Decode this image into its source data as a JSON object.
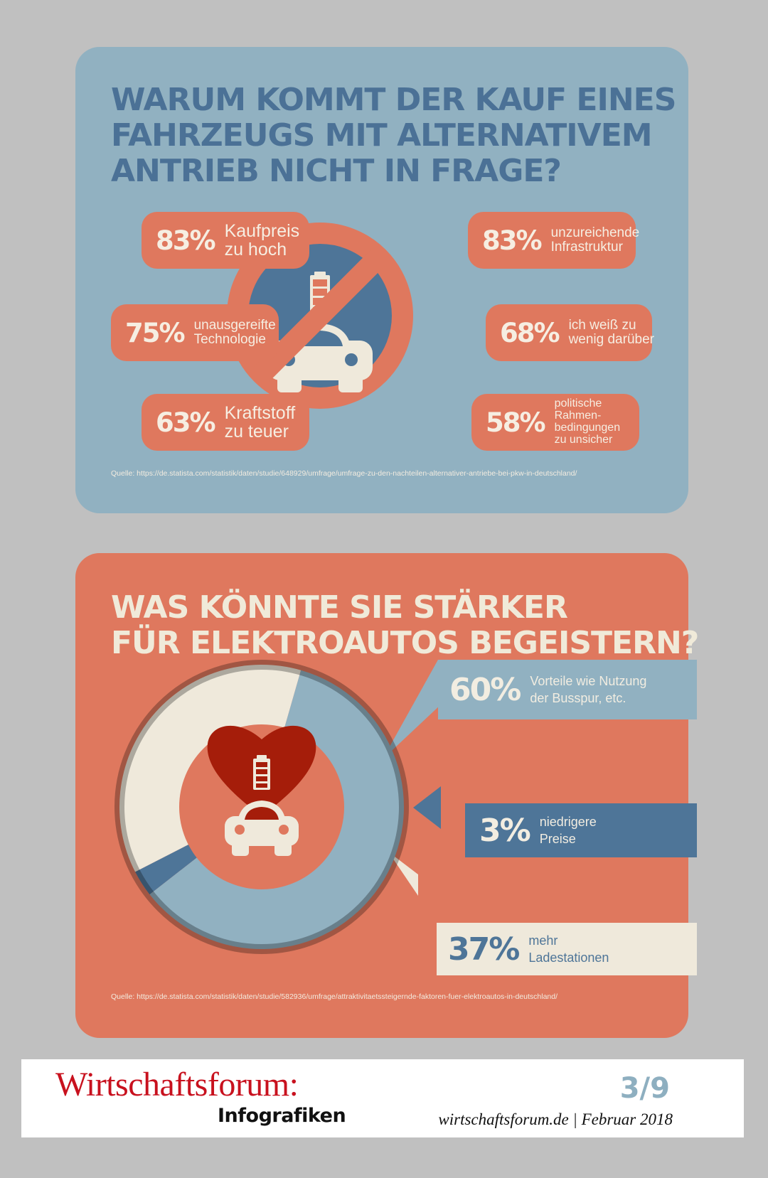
{
  "top": {
    "title_lines": [
      "Warum kommt der Kauf eines",
      "Fahrzeugs mit alternativem",
      "Antrieb nicht in Frage?"
    ],
    "items": [
      {
        "pct": "83%",
        "lines": [
          "Kaufpreis",
          "zu hoch"
        ]
      },
      {
        "pct": "83%",
        "lines": [
          "unzureichende",
          "Infrastruktur"
        ]
      },
      {
        "pct": "75%",
        "lines": [
          "unausgereifte",
          "Technologie"
        ]
      },
      {
        "pct": "68%",
        "lines": [
          "ich weiß zu",
          "wenig darüber"
        ]
      },
      {
        "pct": "63%",
        "lines": [
          "Kraftstoff",
          "zu teuer"
        ]
      },
      {
        "pct": "58%",
        "lines": [
          "politische",
          "Rahmen-",
          "bedingungen",
          "zu unsicher"
        ]
      }
    ],
    "source": "Quelle: https://de.statista.com/statistik/daten/studie/648929/umfrage/umfrage-zu-den-nachteilen-alternativer-antriebe-bei-pkw-in-deutschland/",
    "icon": "no-electric-car-icon"
  },
  "bottom": {
    "title_lines": [
      "Was könnte Sie stärker",
      "für Elektroautos begeistern?"
    ],
    "items": [
      {
        "pct": "60%",
        "lines": [
          "Vorteile wie Nutzung",
          "der Busspur, etc."
        ]
      },
      {
        "pct": "3%",
        "lines": [
          "niedrigere",
          "Preise"
        ]
      },
      {
        "pct": "37%",
        "lines": [
          "mehr",
          "Ladestationen"
        ]
      }
    ],
    "source": "Quelle: https://de.statista.com/statistik/daten/studie/582936/umfrage/attraktivitaetssteigernde-faktoren-fuer-elektroautos-in-deutschland/",
    "icon": "heart-electric-car-icon"
  },
  "chart_data": [
    {
      "type": "bar",
      "title": "Warum kommt der Kauf eines Fahrzeugs mit alternativem Antrieb nicht in Frage?",
      "categories": [
        "Kaufpreis zu hoch",
        "unzureichende Infrastruktur",
        "unausgereifte Technologie",
        "ich weiß zu wenig darüber",
        "Kraftstoff zu teuer",
        "politische Rahmenbedingungen zu unsicher"
      ],
      "values": [
        83,
        83,
        75,
        68,
        63,
        58
      ],
      "unit": "%"
    },
    {
      "type": "pie",
      "title": "Was könnte Sie stärker für Elektroautos begeistern?",
      "categories": [
        "Vorteile wie Nutzung der Busspur, etc.",
        "niedrigere Preise",
        "mehr Ladestationen"
      ],
      "values": [
        60,
        3,
        37
      ],
      "unit": "%",
      "colors": [
        "#91b1c1",
        "#4e7598",
        "#efe9db"
      ]
    }
  ],
  "footer": {
    "brand": "Wirtschaftsforum:",
    "subtitle": "Infografiken",
    "page": "3/9",
    "site": "wirtschaftsforum.de | Februar 2018"
  }
}
